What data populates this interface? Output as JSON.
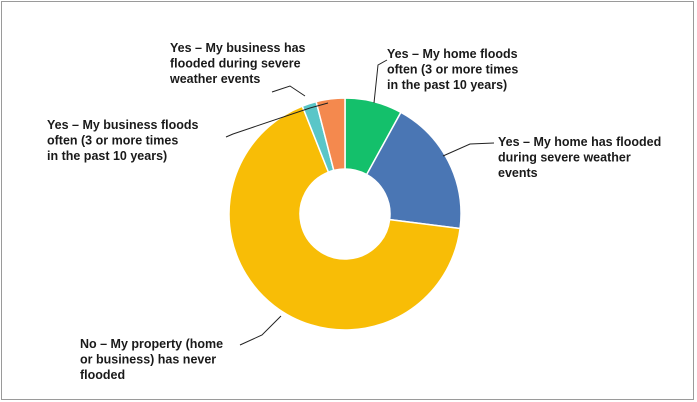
{
  "chart_data": {
    "type": "pie",
    "donut": true,
    "title": "",
    "slices": [
      {
        "label": "Yes – My home floods often (3 or more times in the past 10 years)",
        "lines": [
          "Yes – My home floods",
          "often (3 or more times",
          "in the past 10 years)"
        ],
        "value": 8,
        "color": "#14c06b"
      },
      {
        "label": "Yes – My home has flooded during severe weather events",
        "lines": [
          "Yes – My home has flooded",
          "during severe weather",
          "events"
        ],
        "value": 19,
        "color": "#4a76b4"
      },
      {
        "label": "No – My property (home or business) has never flooded",
        "lines": [
          "No – My property (home",
          "or business) has never",
          "flooded"
        ],
        "value": 67,
        "color": "#f8bd06"
      },
      {
        "label": "Yes – My business floods often (3 or more times in the past 10 years)",
        "lines": [
          "Yes – My business floods",
          "often (3 or more times",
          "in the past 10 years)"
        ],
        "value": 2,
        "color": "#5ac6c8"
      },
      {
        "label": "Yes – My business has flooded during severe weather events",
        "lines": [
          "Yes – My business has",
          "flooded during severe",
          "weather events"
        ],
        "value": 4,
        "color": "#f4894e"
      }
    ],
    "legend": "none (direct labels with leader lines)"
  }
}
